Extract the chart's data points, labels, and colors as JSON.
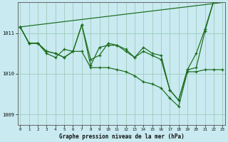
{
  "title": "Graphe pression niveau de la mer (hPa)",
  "background_color": "#c8eaf0",
  "plot_bg_color": "#c8eaf0",
  "grid_color": "#a0ccbb",
  "line_color": "#1a6b1a",
  "marker_color": "#1a6b1a",
  "ylim": [
    1008.75,
    1011.75
  ],
  "yticks": [
    1009,
    1010,
    1011
  ],
  "xlim": [
    -0.3,
    23.3
  ],
  "xticks": [
    0,
    1,
    2,
    3,
    4,
    5,
    6,
    7,
    8,
    9,
    10,
    11,
    12,
    13,
    14,
    15,
    16,
    17,
    18,
    19,
    20,
    21,
    22,
    23
  ],
  "series1_x": [
    0,
    1,
    2,
    3,
    4,
    5,
    6,
    7,
    8,
    9,
    10,
    11,
    12,
    13,
    14,
    15,
    16,
    17,
    18,
    19,
    20,
    21,
    22,
    23
  ],
  "series1_y": [
    1011.15,
    1010.75,
    1010.75,
    1010.55,
    1010.5,
    1010.4,
    1010.55,
    1011.2,
    1010.35,
    1010.45,
    1010.75,
    1010.7,
    1010.55,
    1010.4,
    1010.55,
    1010.45,
    1010.35,
    1009.6,
    1009.35,
    1010.1,
    1010.15,
    1011.05,
    1011.8,
    1011.8
  ],
  "series2_x": [
    0,
    1,
    2,
    3,
    4,
    5,
    6,
    7,
    8,
    9,
    10,
    11,
    12,
    13,
    14,
    15,
    16,
    17,
    18,
    19,
    20,
    21,
    22,
    23
  ],
  "series2_y": [
    1011.15,
    1010.75,
    1010.75,
    1010.55,
    1010.5,
    1010.4,
    1010.55,
    1010.55,
    1010.15,
    1010.15,
    1010.15,
    1010.1,
    1010.05,
    1009.95,
    1009.8,
    1009.75,
    1009.65,
    1009.4,
    1009.2,
    1010.05,
    1010.05,
    1010.1,
    1010.1,
    1010.1
  ],
  "series3_x": [
    0,
    1,
    2,
    3,
    4,
    5,
    6,
    7,
    8,
    9,
    10,
    11,
    12,
    13,
    14,
    15,
    16,
    17,
    18,
    19,
    20,
    21,
    22,
    23
  ],
  "series3_y": [
    1011.15,
    1010.75,
    1010.75,
    1010.5,
    1010.4,
    1010.6,
    1010.55,
    1011.2,
    1010.2,
    1010.65,
    1010.7,
    1010.7,
    1010.6,
    1010.4,
    1010.65,
    1010.5,
    1010.45,
    1009.6,
    1009.35,
    1010.1,
    1010.5,
    1011.1,
    1011.8,
    1011.8
  ],
  "series4_x": [
    0,
    23
  ],
  "series4_y": [
    1011.15,
    1011.75
  ],
  "figsize": [
    3.2,
    2.0
  ],
  "dpi": 100
}
